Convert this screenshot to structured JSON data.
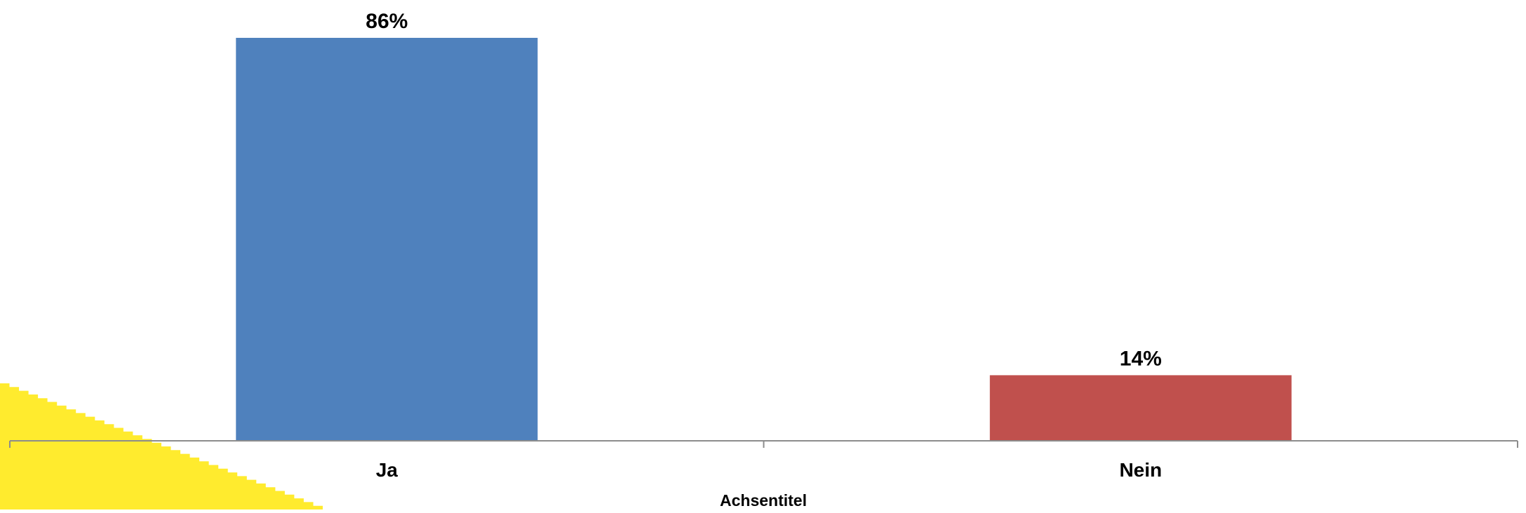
{
  "chart_data": {
    "type": "bar",
    "categories": [
      "Ja",
      "Nein"
    ],
    "values": [
      86,
      14
    ],
    "data_labels": [
      "86%",
      "14%"
    ],
    "bar_colors": [
      "#4F81BD",
      "#C0504D"
    ],
    "value_unit": "%",
    "ylim": [
      0,
      86
    ],
    "xlabel": "Achsentitel",
    "ylabel": "",
    "title": "",
    "grid": false,
    "legend": "none",
    "axis_color": "#8C8C8C",
    "text_color": "#000000",
    "decoration_color": "#FFEB2E"
  }
}
